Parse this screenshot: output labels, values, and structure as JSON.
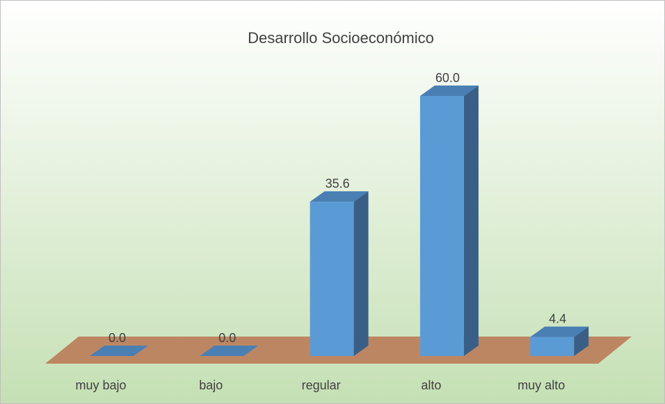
{
  "chart_data": {
    "type": "bar3d",
    "title": "Desarrollo Socioeconómico",
    "categories": [
      "muy bajo",
      "bajo",
      "regular",
      "alto",
      "muy alto"
    ],
    "values": [
      0.0,
      0.0,
      35.6,
      60.0,
      4.4
    ],
    "value_labels": [
      "0.0",
      "0.0",
      "35.6",
      "60.0",
      "4.4"
    ],
    "color": "#5b9bd5"
  }
}
